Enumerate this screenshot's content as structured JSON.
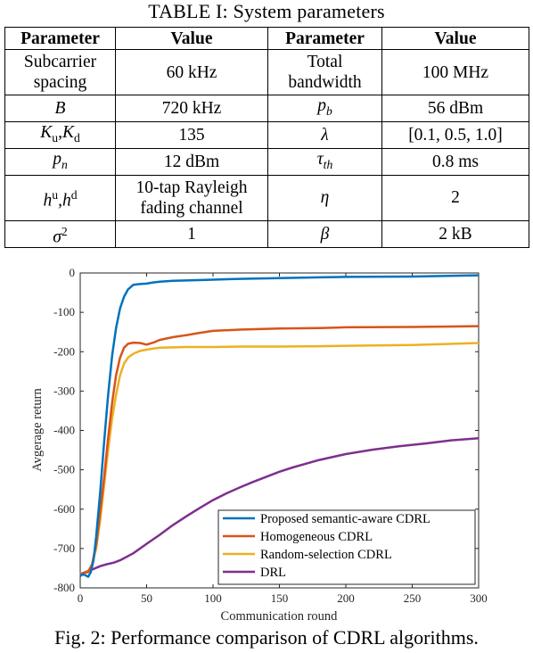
{
  "table": {
    "caption": "TABLE I:  System parameters",
    "headers": [
      "Parameter",
      "Value",
      "Parameter",
      "Value"
    ],
    "rows": [
      [
        "Subcarrier spacing",
        "60 kHz",
        "Total bandwidth",
        "100 MHz"
      ],
      [
        "B",
        "720 kHz",
        "p_b",
        "56 dBm"
      ],
      [
        "K_u,K_d",
        "135",
        "λ",
        "[0.1, 0.5, 1.0]"
      ],
      [
        "p_n",
        "12 dBm",
        "τ_th",
        "0.8 ms"
      ],
      [
        "h^u,h^d",
        "10-tap Rayleigh fading channel",
        "η",
        "2"
      ],
      [
        "σ^2",
        "1",
        "β",
        "2 kB"
      ]
    ]
  },
  "figure": {
    "caption": "Fig. 2: Performance comparison of CDRL algorithms."
  },
  "chart_data": {
    "type": "line",
    "xlabel": "Communication round",
    "ylabel": "Avgerage return",
    "xlim": [
      0,
      300
    ],
    "ylim": [
      -800,
      0
    ],
    "xticks": [
      0,
      50,
      100,
      150,
      200,
      250,
      300
    ],
    "yticks": [
      0,
      -100,
      -200,
      -300,
      -400,
      -500,
      -600,
      -700,
      -800
    ],
    "grid": false,
    "legend_position": "bottom-right",
    "series": [
      {
        "name": "Proposed semantic-aware CDRL",
        "color": "#0072bd",
        "x": [
          0,
          2,
          4,
          6,
          8,
          10,
          12,
          15,
          18,
          21,
          24,
          27,
          30,
          33,
          36,
          40,
          45,
          50,
          55,
          60,
          70,
          80,
          100,
          120,
          150,
          180,
          200,
          250,
          300
        ],
        "y": [
          -770,
          -765,
          -768,
          -772,
          -760,
          -730,
          -670,
          -560,
          -430,
          -310,
          -210,
          -140,
          -90,
          -60,
          -42,
          -30,
          -28,
          -27,
          -24,
          -22,
          -20,
          -19,
          -17,
          -15,
          -13,
          -11,
          -10,
          -9,
          -6
        ]
      },
      {
        "name": "Homogeneous CDRL",
        "color": "#d95319",
        "x": [
          0,
          3,
          6,
          9,
          12,
          15,
          18,
          21,
          24,
          27,
          30,
          33,
          36,
          40,
          45,
          50,
          55,
          60,
          70,
          80,
          90,
          100,
          120,
          150,
          180,
          200,
          250,
          300
        ],
        "y": [
          -765,
          -762,
          -760,
          -740,
          -690,
          -610,
          -520,
          -420,
          -330,
          -260,
          -215,
          -190,
          -180,
          -177,
          -178,
          -182,
          -177,
          -170,
          -163,
          -158,
          -152,
          -147,
          -144,
          -141,
          -140,
          -138,
          -137,
          -135
        ]
      },
      {
        "name": "Random-selection CDRL",
        "color": "#edb120",
        "x": [
          0,
          3,
          6,
          9,
          12,
          15,
          18,
          21,
          24,
          27,
          30,
          33,
          36,
          40,
          45,
          50,
          55,
          60,
          70,
          80,
          100,
          120,
          150,
          180,
          200,
          250,
          300
        ],
        "y": [
          -765,
          -762,
          -758,
          -740,
          -700,
          -630,
          -540,
          -450,
          -370,
          -310,
          -260,
          -230,
          -215,
          -205,
          -198,
          -195,
          -192,
          -190,
          -189,
          -188,
          -188,
          -187,
          -187,
          -186,
          -185,
          -183,
          -178
        ]
      },
      {
        "name": "DRL",
        "color": "#7e2f8e",
        "x": [
          0,
          5,
          10,
          15,
          20,
          25,
          30,
          40,
          50,
          60,
          70,
          80,
          90,
          100,
          110,
          120,
          130,
          140,
          150,
          160,
          180,
          200,
          220,
          240,
          260,
          280,
          300
        ],
        "y": [
          -765,
          -758,
          -752,
          -745,
          -740,
          -736,
          -730,
          -712,
          -688,
          -665,
          -640,
          -618,
          -597,
          -577,
          -560,
          -545,
          -531,
          -518,
          -505,
          -494,
          -475,
          -460,
          -449,
          -440,
          -433,
          -425,
          -420
        ]
      }
    ]
  }
}
